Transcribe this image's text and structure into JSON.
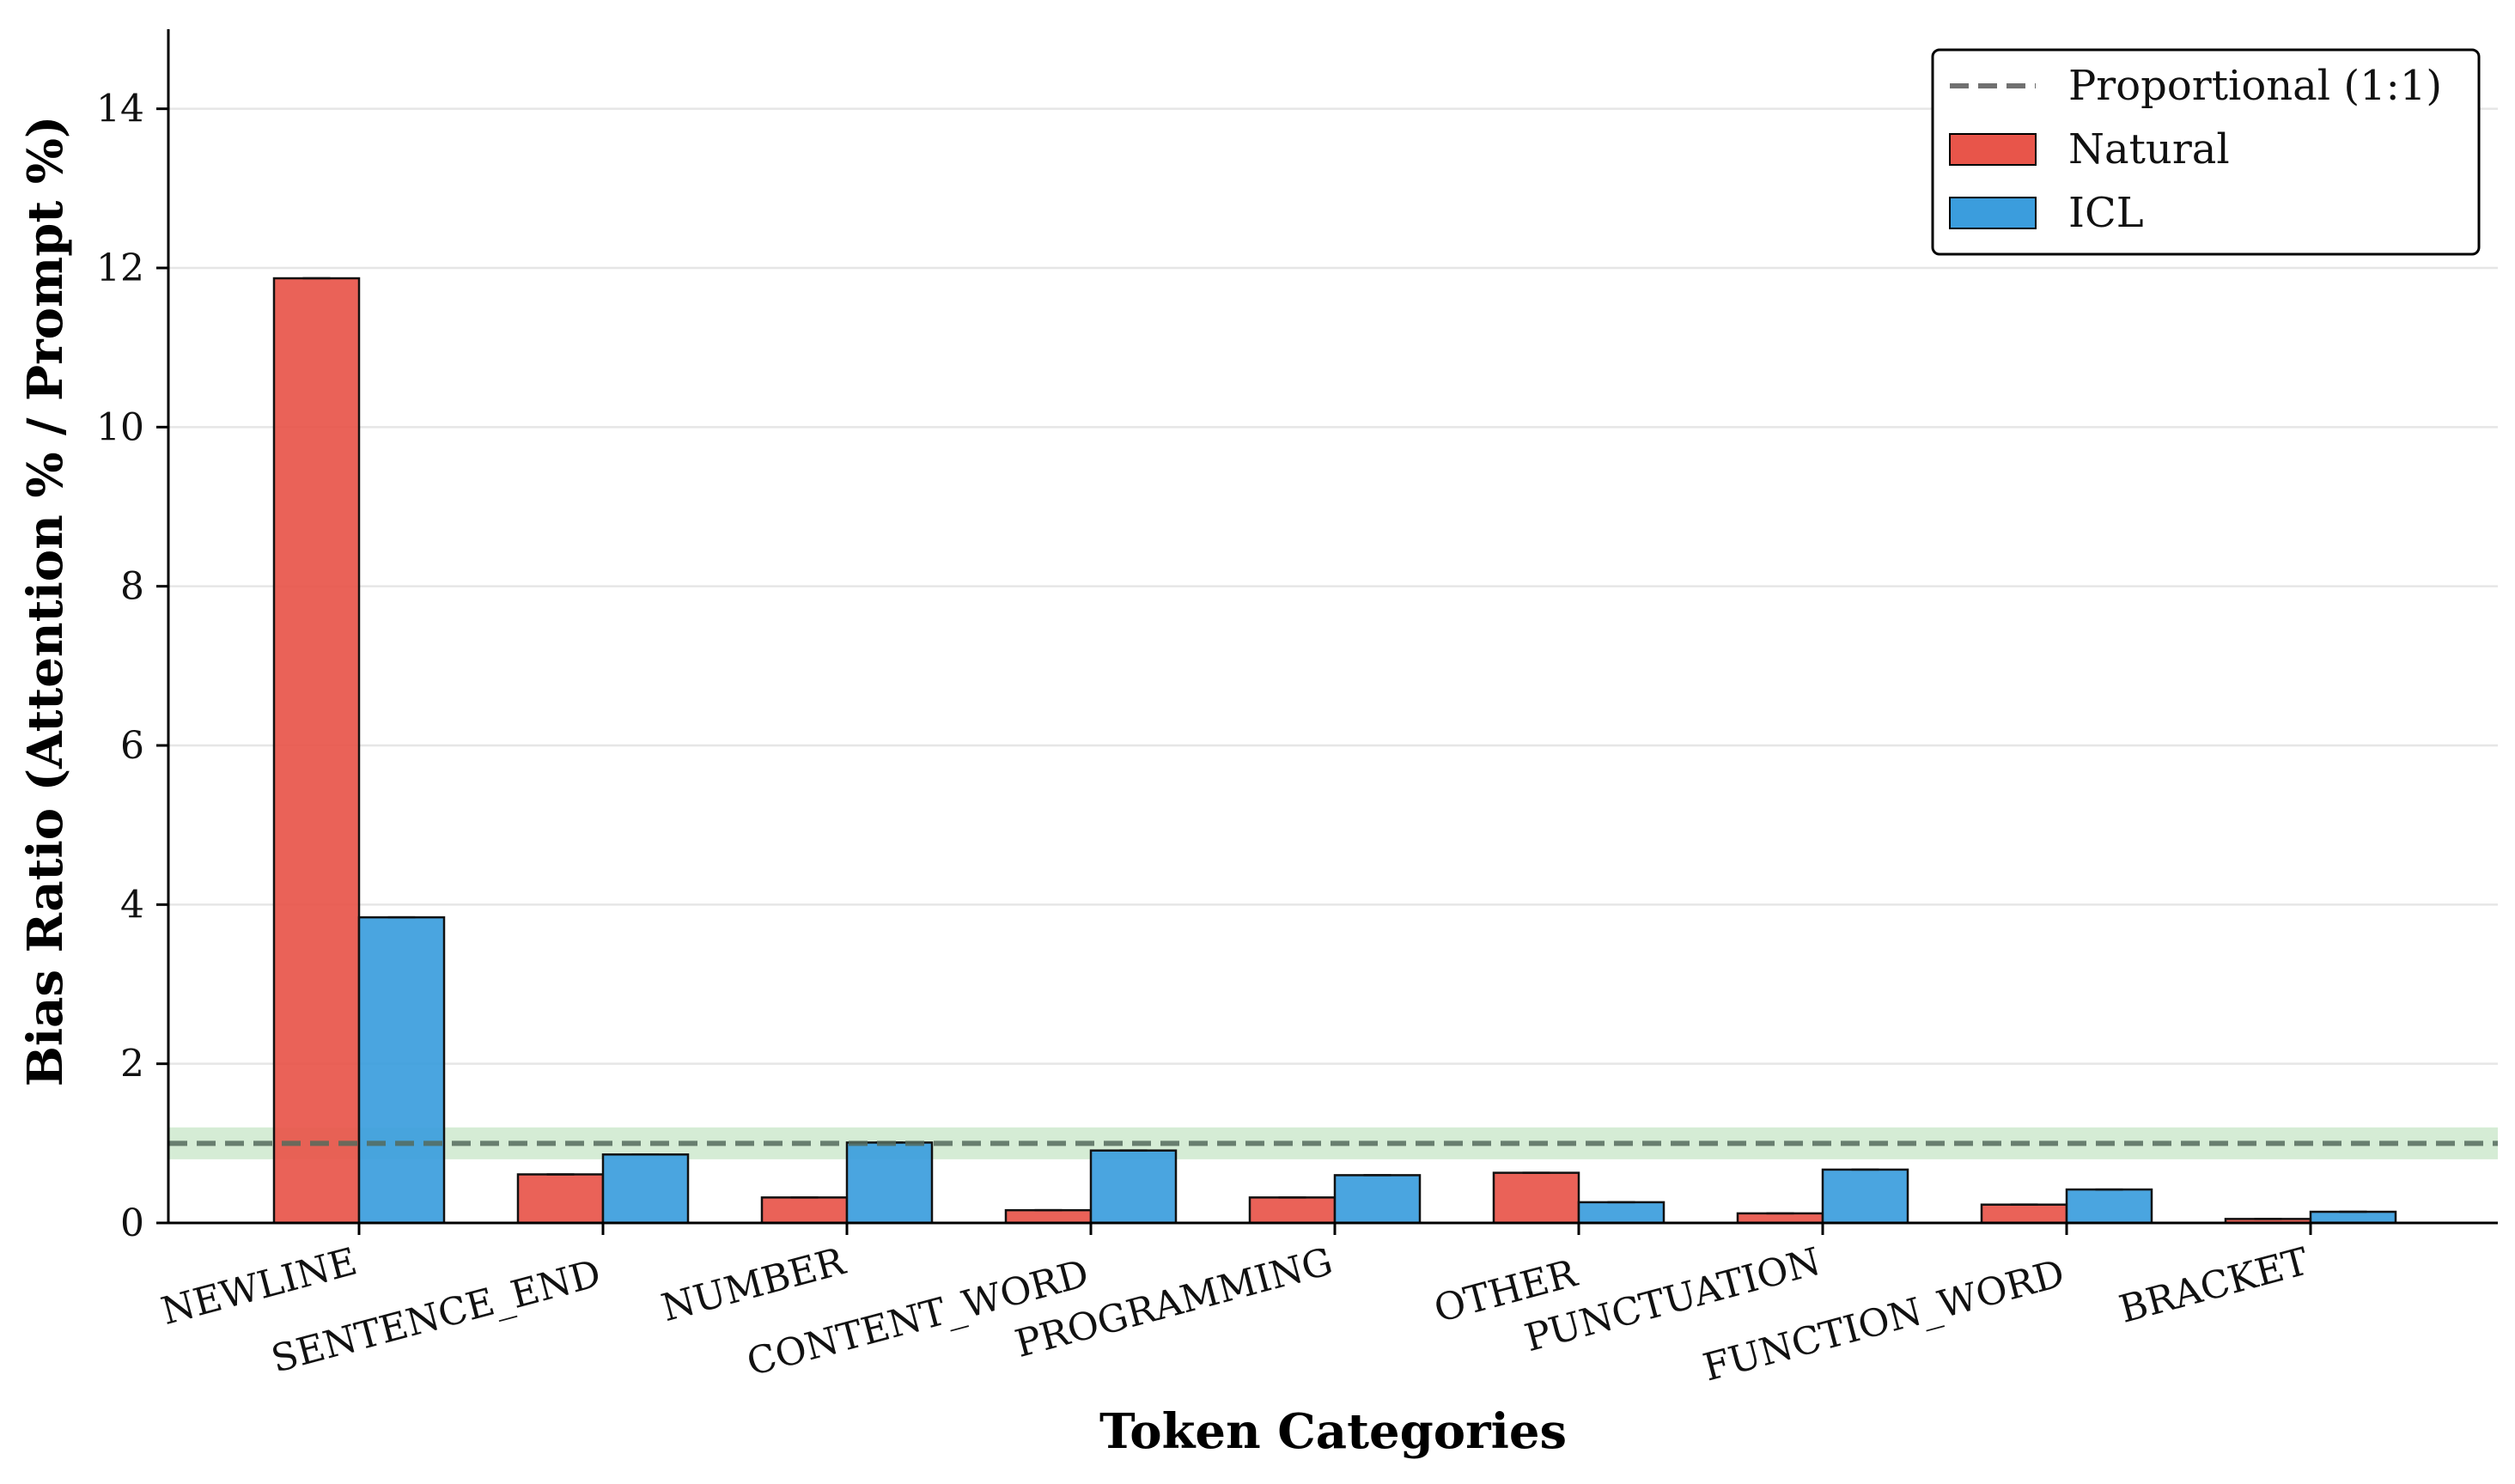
{
  "chart_data": {
    "type": "bar",
    "title": "",
    "xlabel": "Token Categories",
    "ylabel": "Bias Ratio (Attention % / Prompt %)",
    "categories": [
      "NEWLINE",
      "SENTENCE_END",
      "NUMBER",
      "CONTENT_WORD",
      "PROGRAMMING",
      "OTHER",
      "PUNCTUATION",
      "FUNCTION_WORD",
      "BRACKET"
    ],
    "series": [
      {
        "name": "Natural",
        "color": "#e8554a",
        "values": [
          11.87,
          0.61,
          0.32,
          0.16,
          0.32,
          0.63,
          0.12,
          0.23,
          0.05
        ]
      },
      {
        "name": "ICL",
        "color": "#3b9ddd",
        "values": [
          3.84,
          0.86,
          1.01,
          0.91,
          0.6,
          0.26,
          0.67,
          0.42,
          0.14
        ]
      }
    ],
    "reference_line": {
      "name": "Proportional (1:1)",
      "value": 1.0,
      "style": "dashed",
      "color": "#707070"
    },
    "reference_band": {
      "low": 0.8,
      "high": 1.2,
      "color": "#2ca02c"
    },
    "yticks": [
      0,
      2,
      4,
      6,
      8,
      10,
      12,
      14
    ],
    "ylim": [
      0,
      15
    ],
    "grid": "y",
    "legend_position": "top-right"
  }
}
